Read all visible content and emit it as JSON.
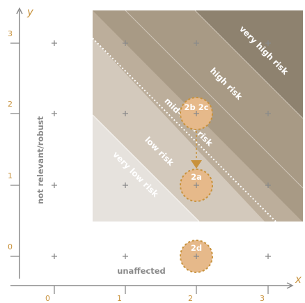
{
  "axes": {
    "x_label": "x",
    "y_label": "y",
    "x_ticks": [
      "0",
      "1",
      "2",
      "3"
    ],
    "y_ticks": [
      "0",
      "1",
      "2",
      "3"
    ]
  },
  "labels": {
    "y_axis_side": "not relevant/robust",
    "bottom_row": "unaffected"
  },
  "zones": [
    {
      "id": "very-low",
      "label": "very low risk",
      "color": "#e6e2dd"
    },
    {
      "id": "low",
      "label": "low risk",
      "color": "#d3c9bc"
    },
    {
      "id": "mid",
      "label": "mid-level risk",
      "color": "#bcae9b"
    },
    {
      "id": "high",
      "label": "high risk",
      "color": "#a89a85"
    },
    {
      "id": "very-high",
      "label": "very high risk",
      "color": "#8e826f"
    }
  ],
  "markers": [
    {
      "label": "2b 2c",
      "x": 2,
      "y": 2
    },
    {
      "label": "2a",
      "x": 2,
      "y": 1
    },
    {
      "label": "2d",
      "x": 2,
      "y": 0
    }
  ],
  "colors": {
    "accent": "#c8923c",
    "marker_fill": "#e6b98a",
    "plus": "#8a8a8a"
  }
}
